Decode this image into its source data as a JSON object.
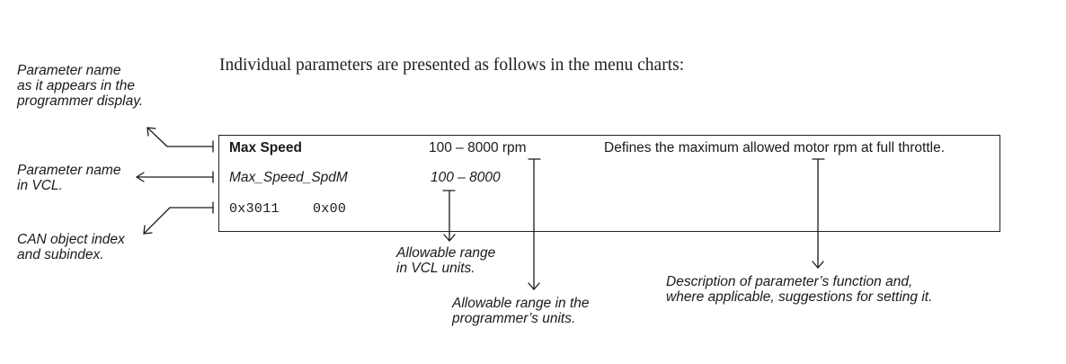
{
  "intro_text": "Individual parameters are presented as follows in the menu charts:",
  "annotations": {
    "programmer_name": [
      "Parameter name",
      "as it appears in the",
      "programmer display."
    ],
    "vcl_name": [
      "Parameter name",
      "in VCL."
    ],
    "can_index": [
      "CAN object index",
      "and subindex."
    ],
    "range_vcl": [
      "Allowable range",
      "in VCL units."
    ],
    "range_programmer": [
      "Allowable range in the",
      "programmer’s units."
    ],
    "description": [
      "Description of parameter’s function and,",
      "where applicable, suggestions for setting it."
    ]
  },
  "example_row": {
    "name": "Max Speed",
    "range": "100 – 8000 rpm",
    "description": "Defines the maximum allowed motor rpm at full throttle.",
    "vcl_name": "Max_Speed_SpdM",
    "vcl_range": "100 – 8000",
    "can_index": "0x3011",
    "can_subindex": "0x00"
  }
}
